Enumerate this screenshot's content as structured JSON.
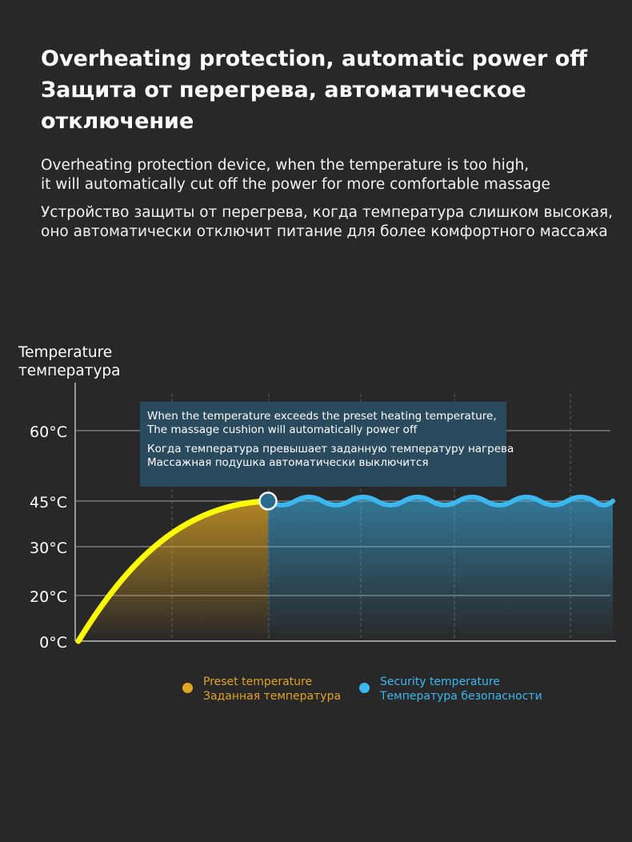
{
  "header": {
    "title_en": "Overheating protection, automatic power off",
    "title_ru_line1": "Защита от перегрева, автоматическое",
    "title_ru_line2": "отключение"
  },
  "description": {
    "en_line1": "Overheating protection device, when the temperature is too high,",
    "en_line2": "it will automatically cut off the power for more comfortable massage",
    "ru_line1": "Устройство защиты от перегрева, когда температура слишком высокая,",
    "ru_line2": "оно автоматически отключит питание для более комфортного массажа"
  },
  "chart_data": {
    "type": "line",
    "y_axis_title_en": "Temperature",
    "y_axis_title_ru": "температура",
    "y_ticks": [
      "0°C",
      "20°C",
      "30°C",
      "45°C",
      "60°C"
    ],
    "y_tick_values": [
      0,
      20,
      30,
      45,
      60
    ],
    "grid": true,
    "series": [
      {
        "name": "Preset temperature",
        "name_ru": "Заданная температура",
        "color": "#ffff00",
        "fill": "#e0a524",
        "x": [
          0,
          0.5,
          1,
          1.5,
          2
        ],
        "y": [
          0,
          22,
          36,
          43,
          45
        ]
      },
      {
        "name": "Security temperature",
        "name_ru": "Температура безопасности",
        "color": "#3cb8f0",
        "fill": "#3cb8f0",
        "x": [
          2,
          6
        ],
        "y": [
          45,
          45
        ],
        "style": "wave"
      }
    ],
    "annotation": {
      "en_line1": "When the temperature exceeds the preset heating temperature,",
      "en_line2": "The massage cushion will automatically power off",
      "ru_line1": "Когда температура превышает заданную температуру нагрева",
      "ru_line2": "Массажная подушка автоматически выключится"
    },
    "legend": {
      "placement": "bottom",
      "preset_en": "Preset temperature",
      "preset_ru": "Заданная температура",
      "preset_color": "#e0a524",
      "security_en": "Security temperature",
      "security_ru": "Температура безопасности",
      "security_color": "#3cb8f0"
    }
  }
}
